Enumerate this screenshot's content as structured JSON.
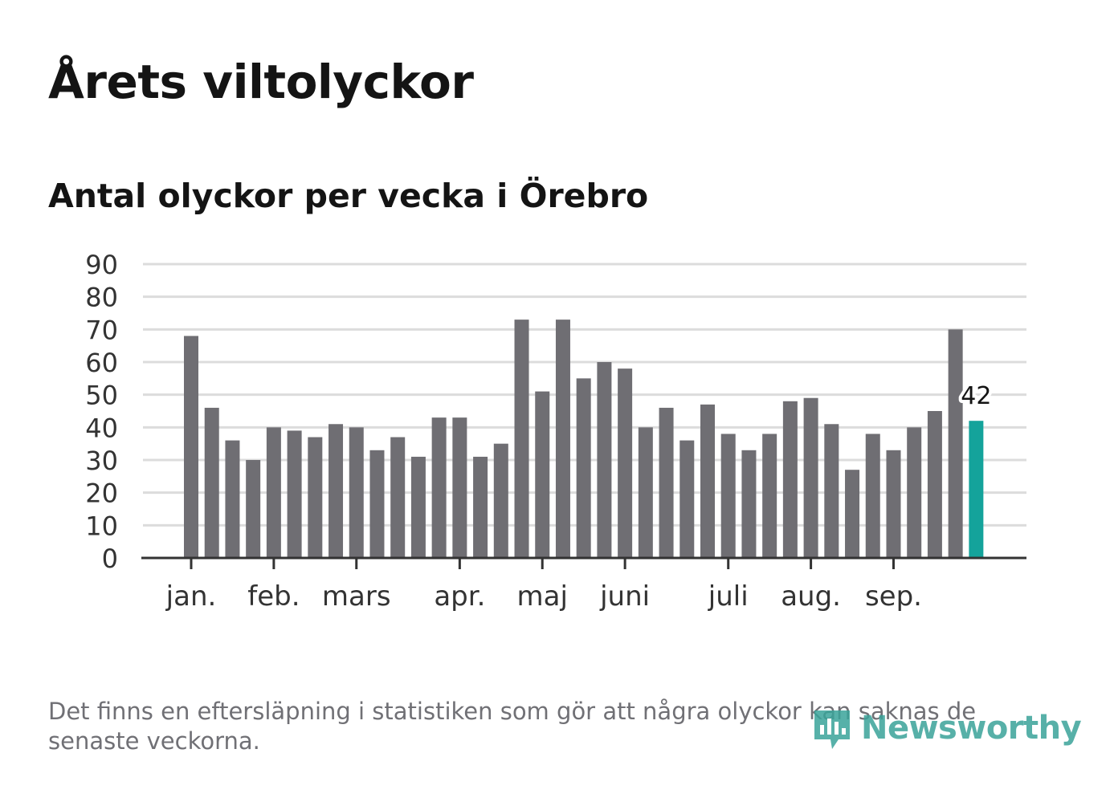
{
  "header": {
    "title": "Årets viltolyckor",
    "subtitle": "Antal olyckor per vecka i Örebro"
  },
  "footer": {
    "note": "Det finns en eftersläpning i statistiken som gör att några olyckor kan saknas de senaste veckorna.",
    "brand": "Newsworthy"
  },
  "colors": {
    "bar": "#6f6e73",
    "highlight": "#14a39b",
    "grid": "#dcdcdc",
    "axis": "#333333",
    "text": "#333333"
  },
  "chart_data": {
    "type": "bar",
    "title": "Antal olyckor per vecka i Örebro",
    "xlabel": "",
    "ylabel": "",
    "ylim": [
      0,
      90
    ],
    "yticks": [
      0,
      10,
      20,
      30,
      40,
      50,
      60,
      70,
      80,
      90
    ],
    "grid": true,
    "weeks": [
      1,
      2,
      3,
      4,
      5,
      6,
      7,
      8,
      9,
      10,
      11,
      12,
      13,
      14,
      15,
      16,
      17,
      18,
      19,
      20,
      21,
      22,
      23,
      24,
      25,
      26,
      27,
      28,
      29,
      30,
      31,
      32,
      33,
      34,
      35,
      36,
      37,
      38,
      39
    ],
    "values": [
      68,
      46,
      36,
      30,
      40,
      39,
      37,
      41,
      40,
      33,
      37,
      31,
      43,
      43,
      31,
      35,
      73,
      51,
      73,
      55,
      60,
      58,
      40,
      46,
      36,
      47,
      38,
      33,
      38,
      48,
      49,
      41,
      27,
      38,
      33,
      40,
      45,
      70,
      42
    ],
    "highlight_index": 38,
    "highlight_label": "42",
    "month_ticks": [
      {
        "label": "jan.",
        "week": 1
      },
      {
        "label": "feb.",
        "week": 5
      },
      {
        "label": "mars",
        "week": 9
      },
      {
        "label": "apr.",
        "week": 14
      },
      {
        "label": "maj",
        "week": 18
      },
      {
        "label": "juni",
        "week": 22
      },
      {
        "label": "juli",
        "week": 27
      },
      {
        "label": "aug.",
        "week": 31
      },
      {
        "label": "sep.",
        "week": 35
      }
    ]
  }
}
